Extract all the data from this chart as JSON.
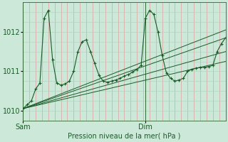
{
  "bg_color": "#cce8d8",
  "plot_bg_color": "#cce8d8",
  "grid_h_color": "#b0d4c0",
  "grid_v_color": "#dfa0a0",
  "line_color": "#1a5c28",
  "xlabel": "Pression niveau de la mer( hPa )",
  "xlabel_color": "#1a5c28",
  "tick_label_color": "#1a5c28",
  "vline_color": "#336633",
  "ylim": [
    1009.75,
    1012.75
  ],
  "yticks": [
    1010,
    1011,
    1012
  ],
  "xlim": [
    0,
    48
  ],
  "sam_x": 0,
  "dim_x": 29,
  "fan_lines": [
    [
      0,
      1010.05,
      48,
      1011.85
    ],
    [
      0,
      1010.05,
      48,
      1012.05
    ],
    [
      0,
      1010.05,
      48,
      1011.5
    ],
    [
      0,
      1010.05,
      48,
      1011.25
    ]
  ],
  "main_series": [
    0,
    1010.05,
    1,
    1010.15,
    2,
    1010.25,
    3,
    1010.55,
    4,
    1010.7,
    5,
    1012.35,
    6,
    1012.55,
    7,
    1011.3,
    8,
    1010.7,
    9,
    1010.65,
    10,
    1010.68,
    11,
    1010.75,
    12,
    1011.0,
    13,
    1011.5,
    14,
    1011.75,
    15,
    1011.8,
    16,
    1011.5,
    17,
    1011.2,
    18,
    1010.9,
    19,
    1010.75,
    20,
    1010.72,
    21,
    1010.75,
    22,
    1010.78,
    23,
    1010.82,
    24,
    1010.88,
    25,
    1010.92,
    26,
    1010.98,
    27,
    1011.05,
    28,
    1011.15,
    29,
    1012.35,
    30,
    1012.55,
    31,
    1012.45,
    32,
    1012.0,
    33,
    1011.4,
    34,
    1010.95,
    35,
    1010.82,
    36,
    1010.75,
    37,
    1010.78,
    38,
    1010.82,
    39,
    1011.0,
    40,
    1011.05,
    41,
    1011.08,
    42,
    1011.1,
    43,
    1011.1,
    44,
    1011.12,
    45,
    1011.15,
    46,
    1011.5,
    47,
    1011.7,
    48,
    1011.85
  ]
}
